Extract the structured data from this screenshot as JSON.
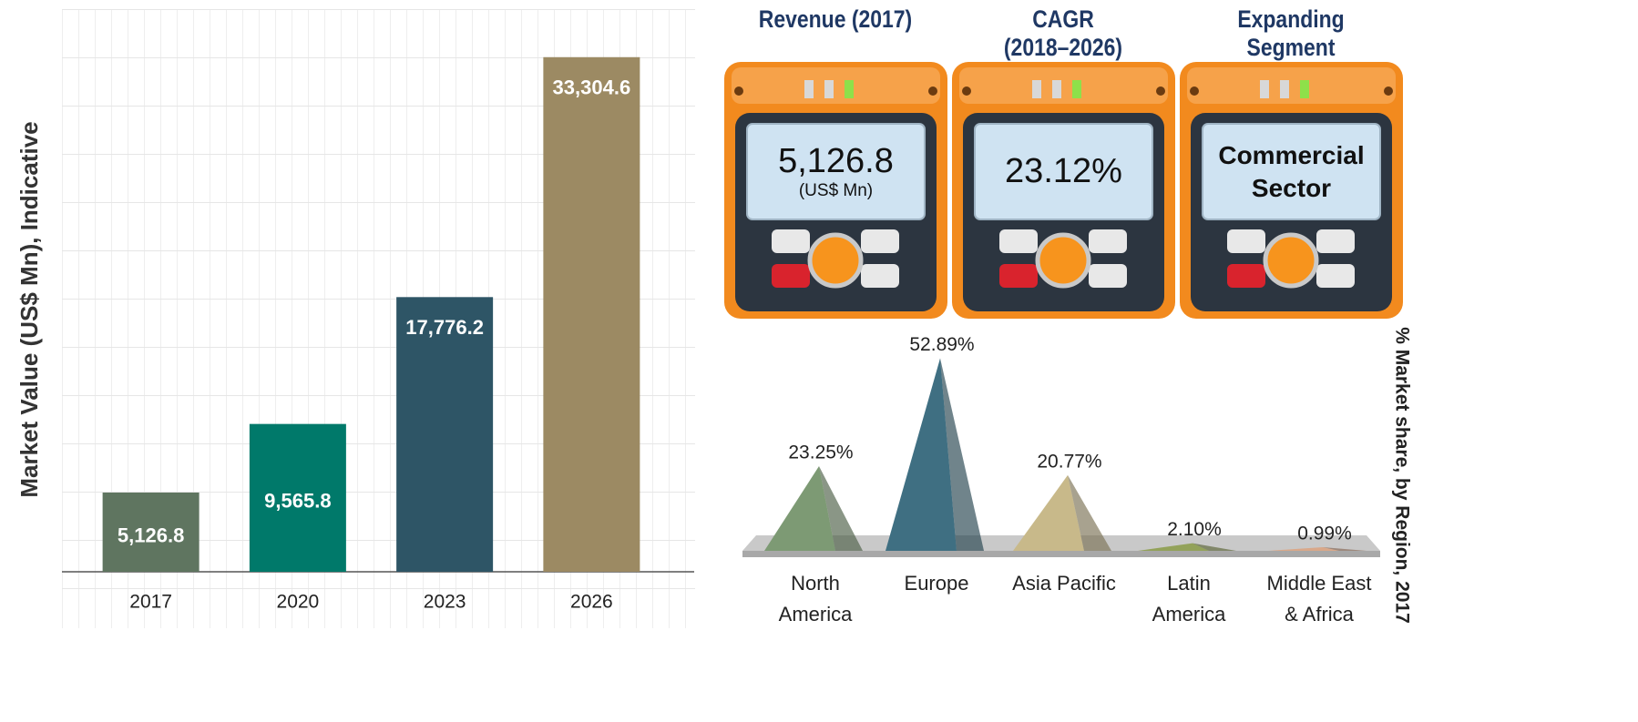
{
  "chart_data": [
    {
      "type": "bar",
      "y_label": "Market Value (US$ Mn), Indicative",
      "categories": [
        "2017",
        "2020",
        "2023",
        "2026"
      ],
      "values": [
        5126.8,
        9565.8,
        17776.2,
        33304.6
      ],
      "value_labels": [
        "5,126.8",
        "9,565.8",
        "17,776.2",
        "33,304.6"
      ],
      "colors": [
        "#5f7560",
        "#00796a",
        "#2e5566",
        "#9c8a63"
      ],
      "ylim": [
        0,
        35000
      ]
    },
    {
      "type": "pyramid",
      "y_label": "% Market share, by Region, 2017",
      "categories": [
        "North America",
        "Europe",
        "Asia Pacific",
        "Latin America",
        "Middle East & Africa"
      ],
      "values": [
        23.25,
        52.89,
        20.77,
        2.1,
        0.99
      ],
      "value_labels": [
        "23.25%",
        "52.89%",
        "20.77%",
        "2.10%",
        "0.99%"
      ],
      "colors": [
        "#7d9a74",
        "#3f6f82",
        "#c8b98a",
        "#93a25a",
        "#d9a88a"
      ],
      "ylim": [
        0,
        55
      ]
    }
  ],
  "panels": [
    {
      "title": "Revenue (2017)",
      "display": "5,126.8",
      "unit": "(US$ Mn)"
    },
    {
      "title": "CAGR (2018–2026)",
      "display": "23.12%"
    },
    {
      "title": "Expanding Segment",
      "display": "Commercial Sector"
    }
  ]
}
